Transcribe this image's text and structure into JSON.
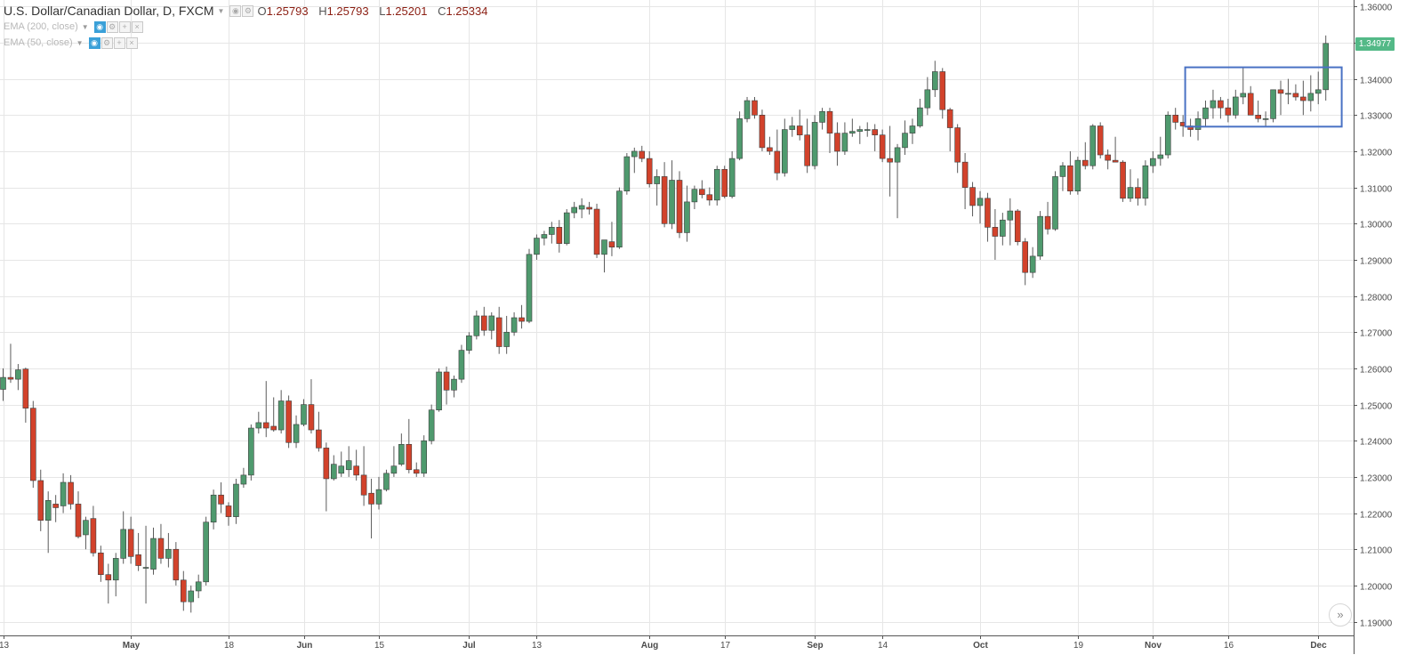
{
  "header": {
    "symbol_title": "U.S. Dollar/Canadian Dollar, D, FXCM",
    "open": "1.25793",
    "high": "1.25793",
    "low": "1.25201",
    "close": "1.25334",
    "open_key": "O",
    "high_key": "H",
    "low_key": "L",
    "close_key": "C"
  },
  "indicators": [
    {
      "label": "EMA (200, close)"
    },
    {
      "label": "EMA (50, close)"
    }
  ],
  "last_price_label": "1.34977",
  "scroll_button_icon": "double-chevron-right-icon",
  "colors": {
    "up": "#4f9a6e",
    "down": "#d2422b",
    "wick": "#5b5b5b",
    "grid": "#e6e6e6",
    "box": "#4a72c4",
    "last_price": "#53b987"
  },
  "chart_data": {
    "type": "candlestick",
    "title": "U.S. Dollar/Canadian Dollar, D, FXCM",
    "ylim": [
      1.1862,
      1.3618
    ],
    "y_ticks": [
      "1.36000",
      "1.35000",
      "1.34000",
      "1.33000",
      "1.32000",
      "1.31000",
      "1.30000",
      "1.29000",
      "1.28000",
      "1.27000",
      "1.26000",
      "1.25000",
      "1.24000",
      "1.23000",
      "1.22000",
      "1.21000",
      "1.20000",
      "1.19000"
    ],
    "x_tick_labels": [
      {
        "label": "13",
        "index": 0
      },
      {
        "label": "May",
        "index": 17
      },
      {
        "label": "18",
        "index": 30
      },
      {
        "label": "Jun",
        "index": 40
      },
      {
        "label": "15",
        "index": 50
      },
      {
        "label": "Jul",
        "index": 62
      },
      {
        "label": "13",
        "index": 71
      },
      {
        "label": "Aug",
        "index": 86
      },
      {
        "label": "17",
        "index": 96
      },
      {
        "label": "Sep",
        "index": 108
      },
      {
        "label": "14",
        "index": 117
      },
      {
        "label": "Oct",
        "index": 130
      },
      {
        "label": "19",
        "index": 143
      },
      {
        "label": "Nov",
        "index": 153
      },
      {
        "label": "16",
        "index": 163
      },
      {
        "label": "Dec",
        "index": 175
      }
    ],
    "highlight_box": {
      "start_index": 158,
      "end_index": 178,
      "price_top": 1.3432,
      "price_bottom": 1.3268
    },
    "grid": true,
    "candles": [
      [
        1.2542,
        1.26,
        1.251,
        1.2575
      ],
      [
        1.2575,
        1.2668,
        1.256,
        1.257
      ],
      [
        1.257,
        1.2612,
        1.254,
        1.2596
      ],
      [
        1.2598,
        1.2602,
        1.245,
        1.249
      ],
      [
        1.249,
        1.251,
        1.227,
        1.229
      ],
      [
        1.229,
        1.232,
        1.215,
        1.218
      ],
      [
        1.218,
        1.226,
        1.209,
        1.2235
      ],
      [
        1.2225,
        1.225,
        1.2175,
        1.2215
      ],
      [
        1.222,
        1.231,
        1.22,
        1.2285
      ],
      [
        1.2285,
        1.2305,
        1.221,
        1.2225
      ],
      [
        1.2225,
        1.226,
        1.213,
        1.2135
      ],
      [
        1.214,
        1.219,
        1.21,
        1.218
      ],
      [
        1.2185,
        1.222,
        1.208,
        1.209
      ],
      [
        1.209,
        1.211,
        1.201,
        1.203
      ],
      [
        1.203,
        1.206,
        1.195,
        1.2015
      ],
      [
        1.2015,
        1.209,
        1.197,
        1.2075
      ],
      [
        1.2075,
        1.2205,
        1.206,
        1.2155
      ],
      [
        1.2155,
        1.219,
        1.206,
        1.208
      ],
      [
        1.2085,
        1.2145,
        1.204,
        1.2055
      ],
      [
        1.205,
        1.2165,
        1.195,
        1.205
      ],
      [
        1.2045,
        1.216,
        1.203,
        1.213
      ],
      [
        1.213,
        1.217,
        1.206,
        1.2075
      ],
      [
        1.2075,
        1.2145,
        1.205,
        1.21
      ],
      [
        1.21,
        1.212,
        1.2,
        1.2015
      ],
      [
        1.2015,
        1.204,
        1.193,
        1.1955
      ],
      [
        1.1955,
        1.2,
        1.1925,
        1.1985
      ],
      [
        1.1985,
        1.203,
        1.1965,
        1.201
      ],
      [
        1.201,
        1.219,
        1.2,
        1.2175
      ],
      [
        1.2175,
        1.2265,
        1.2155,
        1.225
      ],
      [
        1.225,
        1.2285,
        1.22,
        1.2225
      ],
      [
        1.222,
        1.223,
        1.2165,
        1.219
      ],
      [
        1.219,
        1.2295,
        1.217,
        1.228
      ],
      [
        1.228,
        1.2325,
        1.227,
        1.2305
      ],
      [
        1.2305,
        1.2445,
        1.229,
        1.2435
      ],
      [
        1.2435,
        1.248,
        1.242,
        1.245
      ],
      [
        1.245,
        1.2565,
        1.241,
        1.2435
      ],
      [
        1.244,
        1.252,
        1.2425,
        1.243
      ],
      [
        1.243,
        1.254,
        1.242,
        1.251
      ],
      [
        1.251,
        1.2525,
        1.238,
        1.2395
      ],
      [
        1.2395,
        1.247,
        1.238,
        1.2445
      ],
      [
        1.2445,
        1.2515,
        1.244,
        1.25
      ],
      [
        1.25,
        1.257,
        1.242,
        1.243
      ],
      [
        1.243,
        1.248,
        1.237,
        1.238
      ],
      [
        1.238,
        1.2395,
        1.2205,
        1.2295
      ],
      [
        1.2295,
        1.236,
        1.229,
        1.2335
      ],
      [
        1.231,
        1.237,
        1.23,
        1.233
      ],
      [
        1.232,
        1.2385,
        1.23,
        1.2345
      ],
      [
        1.233,
        1.2375,
        1.229,
        1.2305
      ],
      [
        1.2305,
        1.2385,
        1.222,
        1.225
      ],
      [
        1.2255,
        1.2295,
        1.213,
        1.2225
      ],
      [
        1.2225,
        1.23,
        1.221,
        1.2265
      ],
      [
        1.2265,
        1.232,
        1.226,
        1.231
      ],
      [
        1.231,
        1.2385,
        1.23,
        1.233
      ],
      [
        1.2335,
        1.242,
        1.233,
        1.239
      ],
      [
        1.239,
        1.246,
        1.231,
        1.232
      ],
      [
        1.232,
        1.234,
        1.23,
        1.231
      ],
      [
        1.231,
        1.2415,
        1.23,
        1.24
      ],
      [
        1.24,
        1.25,
        1.239,
        1.2485
      ],
      [
        1.2485,
        1.26,
        1.248,
        1.259
      ],
      [
        1.259,
        1.2605,
        1.25,
        1.254
      ],
      [
        1.254,
        1.258,
        1.252,
        1.257
      ],
      [
        1.257,
        1.2665,
        1.256,
        1.265
      ],
      [
        1.265,
        1.27,
        1.264,
        1.269
      ],
      [
        1.269,
        1.276,
        1.268,
        1.2745
      ],
      [
        1.2745,
        1.277,
        1.269,
        1.2705
      ],
      [
        1.2705,
        1.2755,
        1.268,
        1.2745
      ],
      [
        1.274,
        1.277,
        1.264,
        1.266
      ],
      [
        1.266,
        1.2745,
        1.264,
        1.27
      ],
      [
        1.27,
        1.2755,
        1.269,
        1.274
      ],
      [
        1.274,
        1.2775,
        1.271,
        1.273
      ],
      [
        1.273,
        1.293,
        1.2725,
        1.2915
      ],
      [
        1.2915,
        1.297,
        1.29,
        1.296
      ],
      [
        1.296,
        1.298,
        1.294,
        1.297
      ],
      [
        1.297,
        1.3005,
        1.2945,
        1.299
      ],
      [
        1.299,
        1.301,
        1.292,
        1.2945
      ],
      [
        1.2945,
        1.304,
        1.294,
        1.303
      ],
      [
        1.303,
        1.306,
        1.3015,
        1.3045
      ],
      [
        1.304,
        1.307,
        1.3015,
        1.305
      ],
      [
        1.3045,
        1.306,
        1.3025,
        1.304
      ],
      [
        1.304,
        1.3055,
        1.2905,
        1.2915
      ],
      [
        1.2915,
        1.295,
        1.2865,
        1.2955
      ],
      [
        1.295,
        1.3005,
        1.291,
        1.2935
      ],
      [
        1.2935,
        1.31,
        1.293,
        1.309
      ],
      [
        1.309,
        1.3195,
        1.308,
        1.3185
      ],
      [
        1.3185,
        1.321,
        1.314,
        1.32
      ],
      [
        1.32,
        1.3215,
        1.317,
        1.318
      ],
      [
        1.318,
        1.32,
        1.31,
        1.311
      ],
      [
        1.311,
        1.315,
        1.305,
        1.313
      ],
      [
        1.313,
        1.317,
        1.299,
        1.3
      ],
      [
        1.3,
        1.3175,
        1.2985,
        1.312
      ],
      [
        1.312,
        1.3145,
        1.296,
        1.2975
      ],
      [
        1.2975,
        1.3105,
        1.295,
        1.306
      ],
      [
        1.306,
        1.3105,
        1.304,
        1.3095
      ],
      [
        1.3095,
        1.312,
        1.307,
        1.308
      ],
      [
        1.308,
        1.31,
        1.305,
        1.3065
      ],
      [
        1.3065,
        1.316,
        1.305,
        1.315
      ],
      [
        1.315,
        1.316,
        1.307,
        1.3075
      ],
      [
        1.3075,
        1.32,
        1.307,
        1.318
      ],
      [
        1.318,
        1.331,
        1.3175,
        1.329
      ],
      [
        1.329,
        1.335,
        1.328,
        1.334
      ],
      [
        1.334,
        1.335,
        1.329,
        1.33
      ],
      [
        1.33,
        1.3315,
        1.32,
        1.321
      ],
      [
        1.321,
        1.324,
        1.319,
        1.32
      ],
      [
        1.32,
        1.326,
        1.312,
        1.314
      ],
      [
        1.314,
        1.329,
        1.313,
        1.326
      ],
      [
        1.326,
        1.3295,
        1.324,
        1.327
      ],
      [
        1.327,
        1.3315,
        1.323,
        1.3245
      ],
      [
        1.3245,
        1.329,
        1.314,
        1.316
      ],
      [
        1.316,
        1.33,
        1.315,
        1.328
      ],
      [
        1.328,
        1.332,
        1.326,
        1.331
      ],
      [
        1.331,
        1.332,
        1.3195,
        1.325
      ],
      [
        1.325,
        1.328,
        1.316,
        1.32
      ],
      [
        1.32,
        1.328,
        1.319,
        1.325
      ],
      [
        1.325,
        1.329,
        1.324,
        1.3255
      ],
      [
        1.3255,
        1.327,
        1.322,
        1.326
      ],
      [
        1.326,
        1.328,
        1.324,
        1.326
      ],
      [
        1.326,
        1.3275,
        1.32,
        1.3245
      ],
      [
        1.3245,
        1.326,
        1.317,
        1.318
      ],
      [
        1.318,
        1.327,
        1.3075,
        1.317
      ],
      [
        1.317,
        1.322,
        1.3015,
        1.321
      ],
      [
        1.321,
        1.3285,
        1.319,
        1.325
      ],
      [
        1.325,
        1.329,
        1.322,
        1.327
      ],
      [
        1.327,
        1.3345,
        1.3265,
        1.332
      ],
      [
        1.332,
        1.3405,
        1.33,
        1.337
      ],
      [
        1.337,
        1.345,
        1.335,
        1.342
      ],
      [
        1.342,
        1.343,
        1.329,
        1.3315
      ],
      [
        1.3315,
        1.332,
        1.32,
        1.3265
      ],
      [
        1.3265,
        1.3275,
        1.314,
        1.317
      ],
      [
        1.317,
        1.3195,
        1.304,
        1.31
      ],
      [
        1.31,
        1.3115,
        1.302,
        1.305
      ],
      [
        1.305,
        1.309,
        1.3,
        1.307
      ],
      [
        1.307,
        1.3085,
        1.295,
        1.299
      ],
      [
        1.299,
        1.304,
        1.29,
        1.2965
      ],
      [
        1.2965,
        1.303,
        1.294,
        1.301
      ],
      [
        1.301,
        1.307,
        1.294,
        1.3035
      ],
      [
        1.3035,
        1.304,
        1.294,
        1.295
      ],
      [
        1.295,
        1.296,
        1.283,
        1.2865
      ],
      [
        1.2865,
        1.2935,
        1.285,
        1.291
      ],
      [
        1.291,
        1.3035,
        1.29,
        1.302
      ],
      [
        1.302,
        1.306,
        1.297,
        1.2985
      ],
      [
        1.2985,
        1.3145,
        1.298,
        1.313
      ],
      [
        1.313,
        1.317,
        1.309,
        1.316
      ],
      [
        1.316,
        1.32,
        1.308,
        1.309
      ],
      [
        1.309,
        1.3185,
        1.308,
        1.3175
      ],
      [
        1.3175,
        1.3225,
        1.315,
        1.316
      ],
      [
        1.316,
        1.3275,
        1.315,
        1.327
      ],
      [
        1.327,
        1.328,
        1.318,
        1.319
      ],
      [
        1.319,
        1.3205,
        1.315,
        1.3175
      ],
      [
        1.3175,
        1.324,
        1.317,
        1.317
      ],
      [
        1.317,
        1.3175,
        1.306,
        1.307
      ],
      [
        1.307,
        1.315,
        1.306,
        1.31
      ],
      [
        1.31,
        1.3125,
        1.305,
        1.307
      ],
      [
        1.307,
        1.3175,
        1.305,
        1.316
      ],
      [
        1.316,
        1.32,
        1.314,
        1.318
      ],
      [
        1.318,
        1.324,
        1.316,
        1.319
      ],
      [
        1.319,
        1.331,
        1.318,
        1.33
      ],
      [
        1.33,
        1.332,
        1.326,
        1.328
      ],
      [
        1.328,
        1.33,
        1.324,
        1.327
      ],
      [
        1.327,
        1.329,
        1.324,
        1.326
      ],
      [
        1.326,
        1.331,
        1.323,
        1.329
      ],
      [
        1.329,
        1.334,
        1.327,
        1.332
      ],
      [
        1.332,
        1.337,
        1.329,
        1.334
      ],
      [
        1.334,
        1.335,
        1.329,
        1.332
      ],
      [
        1.332,
        1.3345,
        1.328,
        1.33
      ],
      [
        1.33,
        1.337,
        1.329,
        1.335
      ],
      [
        1.335,
        1.343,
        1.333,
        1.336
      ],
      [
        1.336,
        1.338,
        1.33,
        1.33
      ],
      [
        1.33,
        1.334,
        1.328,
        1.329
      ],
      [
        1.329,
        1.331,
        1.327,
        1.329
      ],
      [
        1.329,
        1.337,
        1.328,
        1.337
      ],
      [
        1.337,
        1.3395,
        1.33,
        1.336
      ],
      [
        1.336,
        1.34,
        1.333,
        1.336
      ],
      [
        1.336,
        1.3385,
        1.334,
        1.335
      ],
      [
        1.335,
        1.3395,
        1.33,
        1.334
      ],
      [
        1.334,
        1.341,
        1.331,
        1.336
      ],
      [
        1.336,
        1.342,
        1.333,
        1.337
      ],
      [
        1.337,
        1.352,
        1.334,
        1.3498
      ]
    ]
  }
}
